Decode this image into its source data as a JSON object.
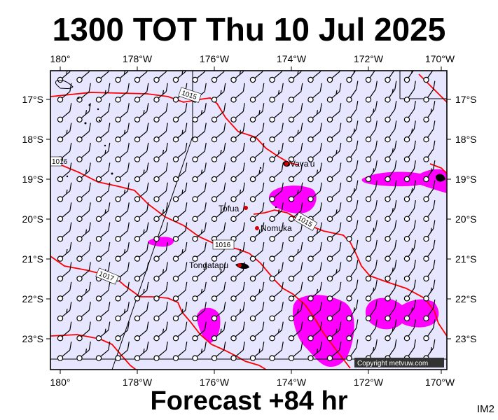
{
  "header": {
    "title": "1300 TOT Thu 10 Jul 2025"
  },
  "footer": {
    "forecast_label": "Forecast +84 hr",
    "corner_code": "IM2"
  },
  "map": {
    "lon_labels": [
      "180°",
      "178°W",
      "176°W",
      "174°W",
      "172°W",
      "170°W"
    ],
    "lat_labels": [
      "17°S",
      "18°S",
      "19°S",
      "20°S",
      "21°S",
      "22°S",
      "23°S"
    ],
    "places": [
      {
        "name": "Vava'u"
      },
      {
        "name": "Tofua"
      },
      {
        "name": "Nomuka"
      },
      {
        "name": "Tongatapu"
      }
    ],
    "isobar_labels": [
      "1015",
      "1016",
      "1015",
      "1016",
      "1017"
    ],
    "copyright": "Copyright metvuw.com",
    "colors": {
      "background": "#e6e6ff",
      "isobar": "#ff0000",
      "rain": "#ff00ff",
      "place_dot": "#d40000"
    }
  }
}
